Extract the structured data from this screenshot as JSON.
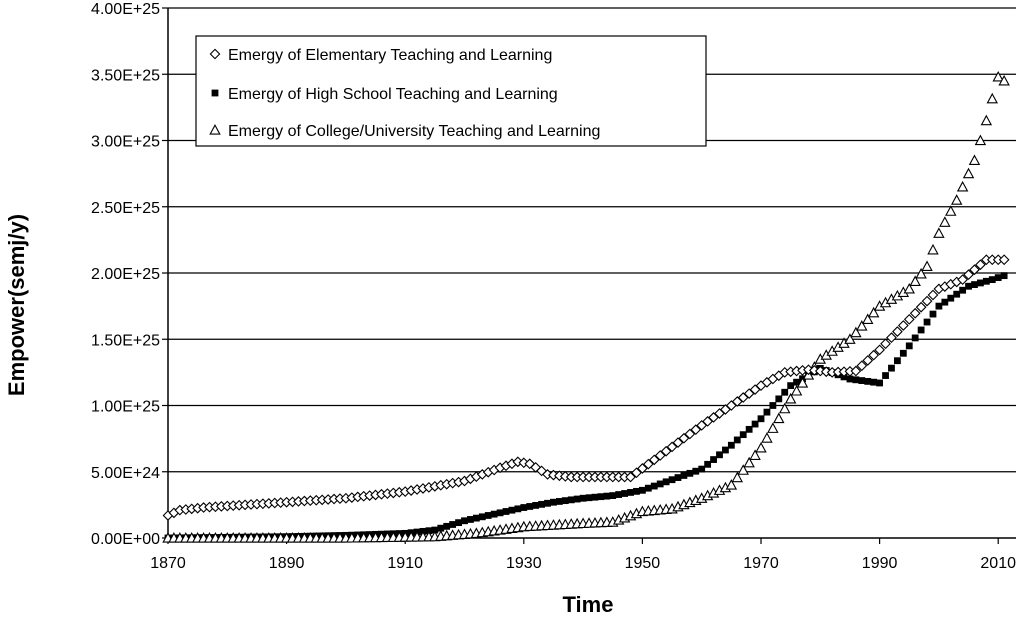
{
  "chart_data": {
    "type": "scatter",
    "title": "",
    "xlabel": "Time",
    "ylabel": "Empower(semj/y)",
    "xlim": [
      1870,
      2013
    ],
    "ylim": [
      0,
      4e+25
    ],
    "xticks": [
      1870,
      1890,
      1910,
      1930,
      1950,
      1970,
      1990,
      2010
    ],
    "yticks": [
      0,
      5e+24,
      1e+25,
      1.5e+25,
      2e+25,
      2.5e+25,
      3e+25,
      3.5e+25,
      4e+25
    ],
    "ytick_labels": [
      "0.00E+00",
      "5.00E+24",
      "1.00E+25",
      "1.50E+25",
      "2.00E+25",
      "2.50E+25",
      "3.00E+25",
      "3.50E+25",
      "4.00E+25"
    ],
    "grid": "horizontal",
    "legend_position": "top-left",
    "series": [
      {
        "name": "Emergy of Elementary Teaching and Learning",
        "marker": "diamond",
        "anchors": [
          [
            1870,
            1.7e+24
          ],
          [
            1872,
            2.1e+24
          ],
          [
            1876,
            2.3e+24
          ],
          [
            1890,
            2.7e+24
          ],
          [
            1900,
            3e+24
          ],
          [
            1910,
            3.5e+24
          ],
          [
            1920,
            4.3e+24
          ],
          [
            1926,
            5.3e+24
          ],
          [
            1929,
            5.75e+24
          ],
          [
            1931,
            5.6e+24
          ],
          [
            1934,
            4.8e+24
          ],
          [
            1938,
            4.6e+24
          ],
          [
            1948,
            4.6e+24
          ],
          [
            1952,
            5.9e+24
          ],
          [
            1960,
            8.5e+24
          ],
          [
            1965,
            1e+25
          ],
          [
            1970,
            1.15e+25
          ],
          [
            1974,
            1.25e+25
          ],
          [
            1978,
            1.27e+25
          ],
          [
            1982,
            1.25e+25
          ],
          [
            1986,
            1.26e+25
          ],
          [
            1990,
            1.42e+25
          ],
          [
            1995,
            1.65e+25
          ],
          [
            2000,
            1.88e+25
          ],
          [
            2004,
            1.95e+25
          ],
          [
            2008,
            2.1e+25
          ],
          [
            2011,
            2.1e+25
          ]
        ]
      },
      {
        "name": "Emergy of High School Teaching and Learning",
        "marker": "square",
        "anchors": [
          [
            1870,
            0
          ],
          [
            1880,
            5e+22
          ],
          [
            1890,
            1e+23
          ],
          [
            1900,
            2e+23
          ],
          [
            1910,
            3.5e+23
          ],
          [
            1915,
            6e+23
          ],
          [
            1920,
            1.3e+24
          ],
          [
            1925,
            1.8e+24
          ],
          [
            1930,
            2.3e+24
          ],
          [
            1935,
            2.7e+24
          ],
          [
            1940,
            3e+24
          ],
          [
            1945,
            3.2e+24
          ],
          [
            1950,
            3.6e+24
          ],
          [
            1955,
            4.4e+24
          ],
          [
            1960,
            5.2e+24
          ],
          [
            1965,
            7e+24
          ],
          [
            1970,
            9e+24
          ],
          [
            1975,
            1.15e+25
          ],
          [
            1980,
            1.28e+25
          ],
          [
            1985,
            1.2e+25
          ],
          [
            1990,
            1.17e+25
          ],
          [
            1995,
            1.45e+25
          ],
          [
            2000,
            1.75e+25
          ],
          [
            2005,
            1.9e+25
          ],
          [
            2009,
            1.95e+25
          ],
          [
            2011,
            1.98e+25
          ]
        ]
      },
      {
        "name": "Emergy of College/University Teaching and Learning",
        "marker": "triangle",
        "anchors": [
          [
            1870,
            0
          ],
          [
            1900,
            0
          ],
          [
            1915,
            1e+23
          ],
          [
            1922,
            3.5e+23
          ],
          [
            1930,
            8.5e+23
          ],
          [
            1940,
            1.1e+24
          ],
          [
            1945,
            1.2e+24
          ],
          [
            1950,
            2e+24
          ],
          [
            1955,
            2.2e+24
          ],
          [
            1960,
            3e+24
          ],
          [
            1965,
            4e+24
          ],
          [
            1970,
            6.8e+24
          ],
          [
            1975,
            1.05e+25
          ],
          [
            1980,
            1.35e+25
          ],
          [
            1985,
            1.5e+25
          ],
          [
            1990,
            1.75e+25
          ],
          [
            1995,
            1.88e+25
          ],
          [
            1998,
            2.05e+25
          ],
          [
            2000,
            2.3e+25
          ],
          [
            2003,
            2.55e+25
          ],
          [
            2006,
            2.85e+25
          ],
          [
            2008,
            3.15e+25
          ],
          [
            2010,
            3.48e+25
          ],
          [
            2011,
            3.45e+25
          ]
        ]
      }
    ]
  }
}
